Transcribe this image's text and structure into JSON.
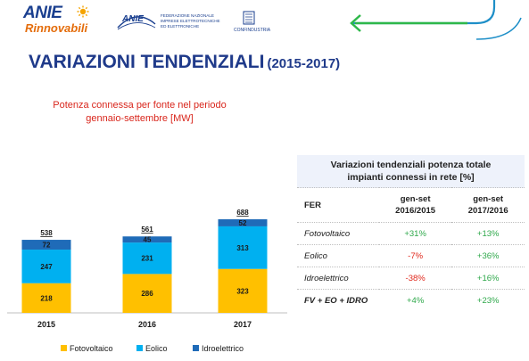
{
  "header": {
    "logo_line1": "ANIE",
    "logo_line2": "Rinnovabili",
    "federation_mark": "ANIE",
    "federation_text": "FEDERAZIONE NAZIONALE\nIMPRESE ELETTROTECNICHE\nED ELETTRONICHE",
    "confindustria": "CONFINDUSTRIA"
  },
  "title": {
    "main": "VARIAZIONI TENDENZIALI",
    "sub": "(2015-2017)"
  },
  "chart_data": {
    "type": "bar",
    "stacked": true,
    "title_line1": "Potenza connessa per fonte nel periodo",
    "title_line2": "gennaio-settembre [MW]",
    "categories": [
      "2015",
      "2016",
      "2017"
    ],
    "series": [
      {
        "name": "Fotovoltaico",
        "color": "#ffc000",
        "values": [
          218,
          286,
          323
        ]
      },
      {
        "name": "Eolico",
        "color": "#00b0f0",
        "values": [
          247,
          231,
          313
        ]
      },
      {
        "name": "Idroelettrico",
        "color": "#1f6bb8",
        "values": [
          72,
          45,
          52
        ]
      }
    ],
    "totals": [
      "538",
      "561",
      "688"
    ],
    "ylim": [
      0,
      700
    ],
    "grid": false,
    "legend": "bottom"
  },
  "table": {
    "title_line1": "Variazioni tendenziali potenza totale",
    "title_line2": "impianti connessi in rete [%]",
    "col_fer": "FER",
    "col1_line1": "gen-set",
    "col1_line2": "2016/2015",
    "col2_line1": "gen-set",
    "col2_line2": "2017/2016",
    "rows": [
      {
        "name": "Fotovoltaico",
        "v1": "+31%",
        "v2": "+13%"
      },
      {
        "name": "Eolico",
        "v1": "-7%",
        "v2": "+36%"
      },
      {
        "name": "Idroelettrico",
        "v1": "-38%",
        "v2": "+16%"
      },
      {
        "name": "FV + EO + IDRO",
        "v1": "+4%",
        "v2": "+23%"
      }
    ]
  }
}
